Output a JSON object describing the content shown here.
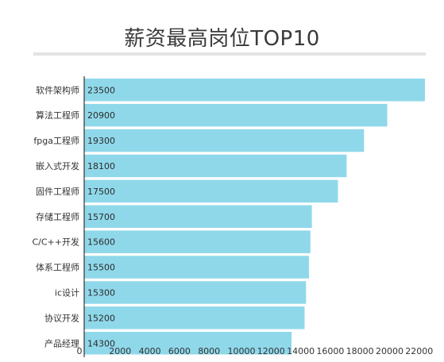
{
  "chart_data": {
    "type": "bar",
    "orientation": "horizontal",
    "title": "薪资最高岗位TOP10",
    "categories": [
      "软件架构师",
      "算法工程师",
      "fpga工程师",
      "嵌入式开发",
      "固件工程师",
      "存储工程师",
      "C/C++开发",
      "体系工程师",
      "ic设计",
      "协议开发",
      "产品经理"
    ],
    "values": [
      23500,
      20900,
      19300,
      18100,
      17500,
      15700,
      15600,
      15500,
      15300,
      15200,
      14300
    ],
    "xticks": [
      "0",
      "2000",
      "4000",
      "6000",
      "8000",
      "10000",
      "12000",
      "14000",
      "16000",
      "18000",
      "20000",
      "22000"
    ],
    "xlim": [
      0,
      23500
    ],
    "xlabel": "",
    "ylabel": "",
    "grid": false,
    "colors": {
      "bar": "#8fd8ea",
      "axis": "#333333",
      "title_rule": "#e3e3e3"
    }
  }
}
